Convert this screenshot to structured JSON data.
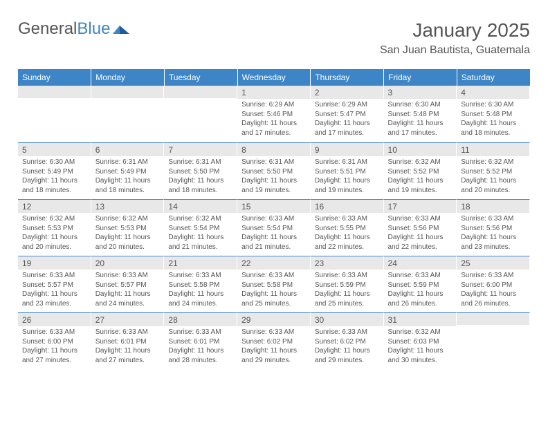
{
  "logo": {
    "text_a": "General",
    "text_b": "Blue"
  },
  "title": "January 2025",
  "location": "San Juan Bautista, Guatemala",
  "colors": {
    "header_bg": "#3d85c6",
    "header_text": "#ffffff",
    "daynum_bg": "#e8e8e8",
    "rule": "#3d85c6",
    "body_text": "#555555"
  },
  "typography": {
    "title_fontsize": 28,
    "location_fontsize": 16,
    "header_fontsize": 12,
    "daynum_fontsize": 12,
    "cell_fontsize": 10
  },
  "day_headers": [
    "Sunday",
    "Monday",
    "Tuesday",
    "Wednesday",
    "Thursday",
    "Friday",
    "Saturday"
  ],
  "labels": {
    "sunrise": "Sunrise:",
    "sunset": "Sunset:",
    "daylight": "Daylight:"
  },
  "weeks": [
    [
      null,
      null,
      null,
      {
        "n": "1",
        "sr": "6:29 AM",
        "ss": "5:46 PM",
        "dl": "11 hours and 17 minutes."
      },
      {
        "n": "2",
        "sr": "6:29 AM",
        "ss": "5:47 PM",
        "dl": "11 hours and 17 minutes."
      },
      {
        "n": "3",
        "sr": "6:30 AM",
        "ss": "5:48 PM",
        "dl": "11 hours and 17 minutes."
      },
      {
        "n": "4",
        "sr": "6:30 AM",
        "ss": "5:48 PM",
        "dl": "11 hours and 18 minutes."
      }
    ],
    [
      {
        "n": "5",
        "sr": "6:30 AM",
        "ss": "5:49 PM",
        "dl": "11 hours and 18 minutes."
      },
      {
        "n": "6",
        "sr": "6:31 AM",
        "ss": "5:49 PM",
        "dl": "11 hours and 18 minutes."
      },
      {
        "n": "7",
        "sr": "6:31 AM",
        "ss": "5:50 PM",
        "dl": "11 hours and 18 minutes."
      },
      {
        "n": "8",
        "sr": "6:31 AM",
        "ss": "5:50 PM",
        "dl": "11 hours and 19 minutes."
      },
      {
        "n": "9",
        "sr": "6:31 AM",
        "ss": "5:51 PM",
        "dl": "11 hours and 19 minutes."
      },
      {
        "n": "10",
        "sr": "6:32 AM",
        "ss": "5:52 PM",
        "dl": "11 hours and 19 minutes."
      },
      {
        "n": "11",
        "sr": "6:32 AM",
        "ss": "5:52 PM",
        "dl": "11 hours and 20 minutes."
      }
    ],
    [
      {
        "n": "12",
        "sr": "6:32 AM",
        "ss": "5:53 PM",
        "dl": "11 hours and 20 minutes."
      },
      {
        "n": "13",
        "sr": "6:32 AM",
        "ss": "5:53 PM",
        "dl": "11 hours and 20 minutes."
      },
      {
        "n": "14",
        "sr": "6:32 AM",
        "ss": "5:54 PM",
        "dl": "11 hours and 21 minutes."
      },
      {
        "n": "15",
        "sr": "6:33 AM",
        "ss": "5:54 PM",
        "dl": "11 hours and 21 minutes."
      },
      {
        "n": "16",
        "sr": "6:33 AM",
        "ss": "5:55 PM",
        "dl": "11 hours and 22 minutes."
      },
      {
        "n": "17",
        "sr": "6:33 AM",
        "ss": "5:56 PM",
        "dl": "11 hours and 22 minutes."
      },
      {
        "n": "18",
        "sr": "6:33 AM",
        "ss": "5:56 PM",
        "dl": "11 hours and 23 minutes."
      }
    ],
    [
      {
        "n": "19",
        "sr": "6:33 AM",
        "ss": "5:57 PM",
        "dl": "11 hours and 23 minutes."
      },
      {
        "n": "20",
        "sr": "6:33 AM",
        "ss": "5:57 PM",
        "dl": "11 hours and 24 minutes."
      },
      {
        "n": "21",
        "sr": "6:33 AM",
        "ss": "5:58 PM",
        "dl": "11 hours and 24 minutes."
      },
      {
        "n": "22",
        "sr": "6:33 AM",
        "ss": "5:58 PM",
        "dl": "11 hours and 25 minutes."
      },
      {
        "n": "23",
        "sr": "6:33 AM",
        "ss": "5:59 PM",
        "dl": "11 hours and 25 minutes."
      },
      {
        "n": "24",
        "sr": "6:33 AM",
        "ss": "5:59 PM",
        "dl": "11 hours and 26 minutes."
      },
      {
        "n": "25",
        "sr": "6:33 AM",
        "ss": "6:00 PM",
        "dl": "11 hours and 26 minutes."
      }
    ],
    [
      {
        "n": "26",
        "sr": "6:33 AM",
        "ss": "6:00 PM",
        "dl": "11 hours and 27 minutes."
      },
      {
        "n": "27",
        "sr": "6:33 AM",
        "ss": "6:01 PM",
        "dl": "11 hours and 27 minutes."
      },
      {
        "n": "28",
        "sr": "6:33 AM",
        "ss": "6:01 PM",
        "dl": "11 hours and 28 minutes."
      },
      {
        "n": "29",
        "sr": "6:33 AM",
        "ss": "6:02 PM",
        "dl": "11 hours and 29 minutes."
      },
      {
        "n": "30",
        "sr": "6:33 AM",
        "ss": "6:02 PM",
        "dl": "11 hours and 29 minutes."
      },
      {
        "n": "31",
        "sr": "6:32 AM",
        "ss": "6:03 PM",
        "dl": "11 hours and 30 minutes."
      },
      null
    ]
  ]
}
